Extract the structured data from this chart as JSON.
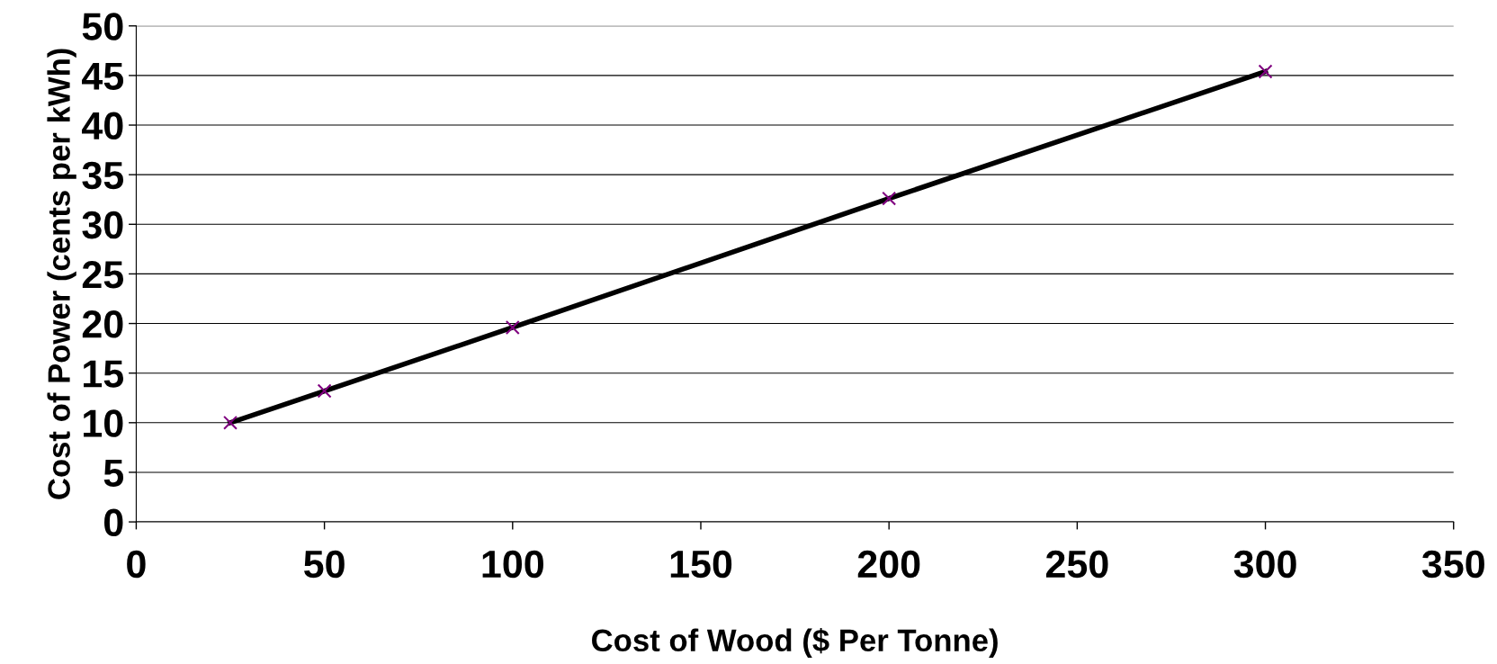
{
  "chart_data": {
    "type": "line",
    "xlabel": "Cost of Wood ($ Per Tonne)",
    "ylabel": "Cost of Power (cents per kWh)",
    "x": [
      25,
      50,
      100,
      200,
      300
    ],
    "series": [
      {
        "color": "#000000",
        "colors": [
          "#800080",
          "#800080",
          "#800080",
          "#800080",
          "#800080"
        ],
        "values": [
          10,
          13.2,
          19.6,
          32.6,
          45.4
        ]
      }
    ],
    "xlim": [
      0,
      350
    ],
    "xticks": [
      0,
      50,
      100,
      150,
      200,
      250,
      300,
      350
    ],
    "ylim": [
      0,
      50
    ],
    "yticks": [
      0,
      5,
      10,
      15,
      20,
      25,
      30,
      35,
      40,
      45,
      50
    ],
    "grid": "y",
    "marker": "cross",
    "line_style": "solid"
  }
}
